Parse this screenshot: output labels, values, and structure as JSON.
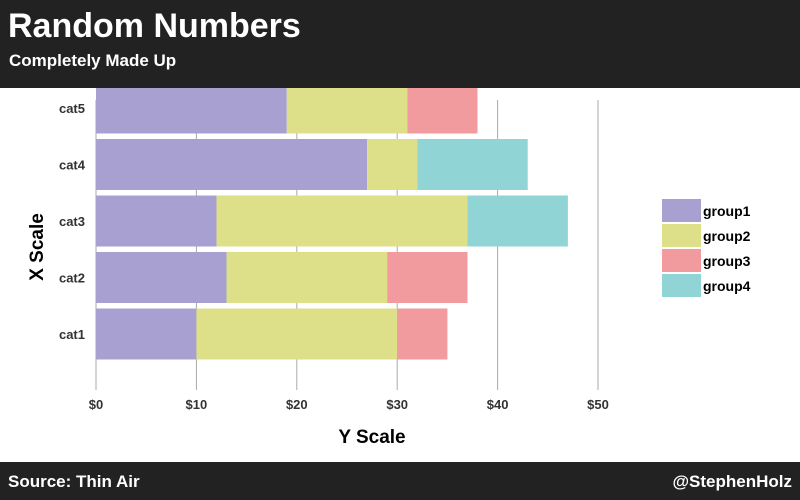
{
  "header": {
    "title": "Random Numbers",
    "subtitle": "Completely Made Up"
  },
  "footer": {
    "source": "Source: Thin Air",
    "credit": "@StephenHolz"
  },
  "colors": {
    "header_bg": "#222222",
    "group1": "#a7a0d1",
    "group2": "#dde089",
    "group3": "#f29b9f",
    "group4": "#90d4d6",
    "grid": "#aaaaaa",
    "axis_text": "#333333"
  },
  "chart_data": {
    "type": "bar",
    "orientation": "horizontal",
    "stacked": true,
    "categories": [
      "cat1",
      "cat2",
      "cat3",
      "cat4",
      "cat5"
    ],
    "series": [
      {
        "name": "group1",
        "color": "#a7a0d1",
        "values": [
          10,
          13,
          12,
          27,
          19
        ]
      },
      {
        "name": "group2",
        "color": "#dde089",
        "values": [
          20,
          16,
          25,
          5,
          12
        ]
      },
      {
        "name": "group3",
        "color": "#f29b9f",
        "values": [
          5,
          8,
          0,
          0,
          7
        ]
      },
      {
        "name": "group4",
        "color": "#90d4d6",
        "values": [
          0,
          0,
          10,
          11,
          0
        ]
      }
    ],
    "xlabel": "Y Scale",
    "ylabel": "X Scale",
    "xlim": [
      0,
      52
    ],
    "xticks": [
      0,
      10,
      20,
      30,
      40,
      50
    ],
    "xtick_labels": [
      "$0",
      "$10",
      "$20",
      "$30",
      "$40",
      "$50"
    ],
    "grid": true,
    "legend": "right"
  }
}
